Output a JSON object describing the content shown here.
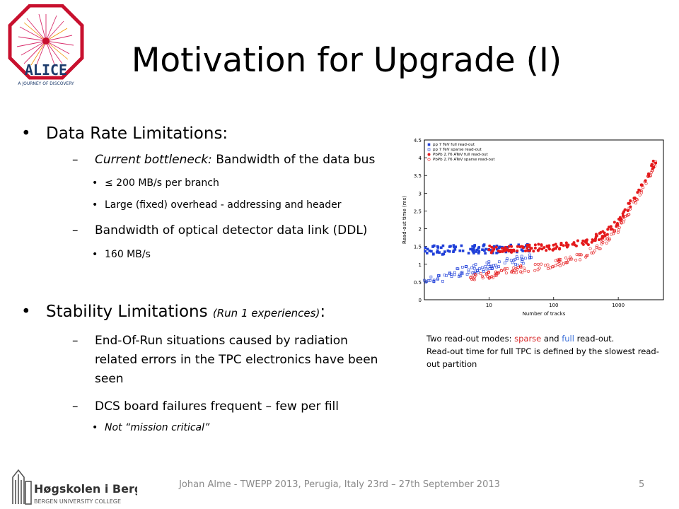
{
  "title": "Motivation for Upgrade (I)",
  "logos": {
    "alice_text": "ALICE",
    "alice_tagline": "A JOURNEY OF DISCOVERY",
    "college_name": "Høgskolen i Bergen",
    "college_subtitle": "BERGEN UNIVERSITY COLLEGE"
  },
  "content": {
    "section1": {
      "heading": "Data Rate Limitations:",
      "item1_italic": "Current bottleneck:",
      "item1_rest": " Bandwidth of the data bus",
      "item1_sub1": "≤ 200 MB/s per branch",
      "item1_sub2": "Large (fixed) overhead - addressing and header",
      "item2": "Bandwidth of optical detector data link (DDL)",
      "item2_sub1": "160 MB/s"
    },
    "section2": {
      "heading": "Stability Limitations ",
      "heading_note": "(Run 1 experiences)",
      "heading_colon": ":",
      "item1_line1": "End-Of-Run situations caused by radiation",
      "item1_line2": "related errors in the TPC electronics have been",
      "item1_line3": "seen",
      "item2": "DCS board failures frequent – few per fill",
      "item2_sub1": "Not “mission critical”"
    }
  },
  "caption": {
    "part1": "Two read-out modes: ",
    "sparse": "sparse",
    "part2": " and ",
    "full": "full",
    "part3": " read-out.",
    "line2": "Read-out time for full TPC is defined by the slowest read-out partition",
    "sparse_color": "#d62728",
    "full_color": "#3a6fd8"
  },
  "footer": {
    "text": "Johan Alme - TWEPP 2013, Perugia, Italy 23rd – 27th September 2013",
    "page": "5"
  },
  "chart_data": {
    "type": "scatter",
    "xlabel": "Number of tracks",
    "ylabel": "Read-out time (ms)",
    "x_scale": "log",
    "x_ticks": [
      "10",
      "100",
      "1000"
    ],
    "y_ticks": [
      "0",
      "0.5",
      "1",
      "1.5",
      "2",
      "2.5",
      "3",
      "3.5",
      "4",
      "4.5"
    ],
    "ylim": [
      0,
      4.5
    ],
    "xlim": [
      1,
      5000
    ],
    "legend_position": "top-left",
    "series": [
      {
        "name": "pp 7 TeV full read-out",
        "color": "#1f3fd8",
        "marker": "filled-square",
        "x": [
          1,
          2,
          3,
          5,
          8,
          12,
          20,
          30,
          50
        ],
        "y": [
          1.4,
          1.4,
          1.42,
          1.41,
          1.43,
          1.42,
          1.44,
          1.43,
          1.45
        ]
      },
      {
        "name": "pp 7 TeV sparse read-out",
        "color": "#1f3fd8",
        "marker": "open-square",
        "x": [
          1,
          2,
          3,
          5,
          8,
          12,
          20,
          30,
          50
        ],
        "y": [
          0.55,
          0.65,
          0.75,
          0.85,
          0.9,
          1.0,
          1.05,
          1.1,
          1.2
        ]
      },
      {
        "name": "PbPb 2.76 ATeV full read-out",
        "color": "#e41a1c",
        "marker": "filled-circle",
        "x": [
          10,
          30,
          100,
          300,
          600,
          1000,
          2000,
          3000,
          4000
        ],
        "y": [
          1.42,
          1.44,
          1.48,
          1.6,
          1.85,
          2.2,
          3.0,
          3.6,
          4.0
        ]
      },
      {
        "name": "PbPb 2.76 ATeV sparse read-out",
        "color": "#e41a1c",
        "marker": "open-circle",
        "x": [
          5,
          10,
          30,
          100,
          300,
          600,
          1000,
          2000,
          3000,
          4000
        ],
        "y": [
          0.6,
          0.7,
          0.85,
          1.0,
          1.25,
          1.6,
          2.0,
          2.9,
          3.5,
          4.0
        ]
      }
    ]
  }
}
